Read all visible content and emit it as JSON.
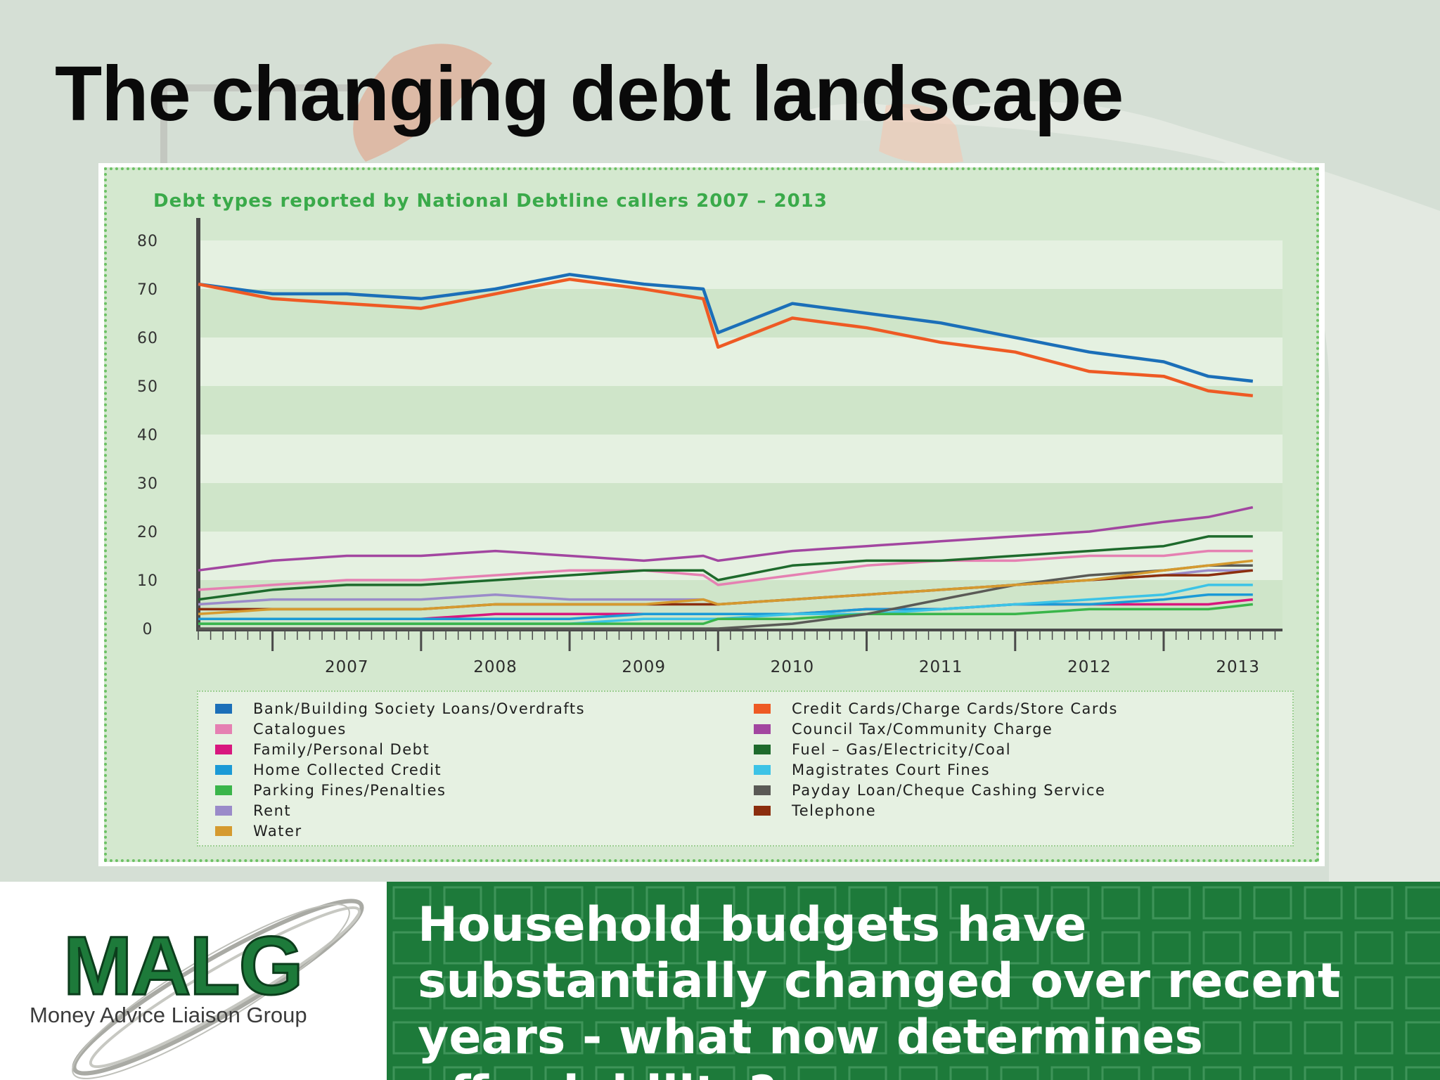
{
  "slide": {
    "title": "The changing debt landscape",
    "footer_text": "Household budgets have substantially changed over recent years - what now determines affordability?",
    "logo_text": "MALG",
    "logo_subtitle": "Money Advice Liaison Group"
  },
  "colors": {
    "accent_green": "#1d7a3a",
    "chart_background": "#d4e8cf",
    "chart_title": "#3aaa4a"
  },
  "chart_data": {
    "type": "line",
    "title": "Debt types reported by National Debtline callers 2007 – 2013",
    "xlabel": "",
    "ylabel": "",
    "ylim": [
      0,
      80
    ],
    "yticks": [
      0,
      10,
      20,
      30,
      40,
      50,
      60,
      70,
      80
    ],
    "xlim": [
      2006.5,
      2013.8
    ],
    "xticks": [
      2007,
      2008,
      2009,
      2010,
      2011,
      2012,
      2013
    ],
    "xtick_labels": [
      "2007",
      "2008",
      "2009",
      "2010",
      "2011",
      "2012",
      "2013"
    ],
    "grid": "alternating horizontal bands",
    "legend_position": "bottom",
    "x": [
      2006.5,
      2007.0,
      2007.5,
      2008.0,
      2008.5,
      2009.0,
      2009.5,
      2009.9,
      2010.0,
      2010.5,
      2011.0,
      2011.5,
      2012.0,
      2012.5,
      2013.0,
      2013.3,
      2013.6
    ],
    "series": [
      {
        "name": "Bank/Building Society Loans/Overdrafts",
        "color": "#1b6fb8",
        "values": [
          71,
          69,
          69,
          68,
          70,
          73,
          71,
          70,
          61,
          67,
          65,
          63,
          60,
          57,
          55,
          52,
          51
        ]
      },
      {
        "name": "Credit Cards/Charge Cards/Store Cards",
        "color": "#ee5a24",
        "values": [
          71,
          68,
          67,
          66,
          69,
          72,
          70,
          68,
          58,
          64,
          62,
          59,
          57,
          53,
          52,
          49,
          48
        ]
      },
      {
        "name": "Catalogues",
        "color": "#e580b2",
        "values": [
          8,
          9,
          10,
          10,
          11,
          12,
          12,
          11,
          9,
          11,
          13,
          14,
          14,
          15,
          15,
          16,
          16
        ]
      },
      {
        "name": "Council Tax/Community Charge",
        "color": "#a246a0",
        "values": [
          12,
          14,
          15,
          15,
          16,
          15,
          14,
          15,
          14,
          16,
          17,
          18,
          19,
          20,
          22,
          23,
          25
        ]
      },
      {
        "name": "Family/Personal Debt",
        "color": "#d8177e",
        "values": [
          2,
          2,
          2,
          2,
          3,
          3,
          3,
          3,
          3,
          3,
          4,
          4,
          5,
          5,
          5,
          5,
          6
        ]
      },
      {
        "name": "Fuel – Gas/Electricity/Coal",
        "color": "#1e6a2c",
        "values": [
          6,
          8,
          9,
          9,
          10,
          11,
          12,
          12,
          10,
          13,
          14,
          14,
          15,
          16,
          17,
          19,
          19
        ]
      },
      {
        "name": "Home Collected Credit",
        "color": "#1b9ad6",
        "values": [
          2,
          2,
          2,
          2,
          2,
          2,
          3,
          3,
          3,
          3,
          4,
          4,
          5,
          5,
          6,
          7,
          7
        ]
      },
      {
        "name": "Magistrates Court Fines",
        "color": "#3cc3e6",
        "values": [
          1,
          1,
          1,
          1,
          1,
          1,
          2,
          2,
          2,
          3,
          3,
          4,
          5,
          6,
          7,
          9,
          9
        ]
      },
      {
        "name": "Parking Fines/Penalties",
        "color": "#3ab54a",
        "values": [
          1,
          1,
          1,
          1,
          1,
          1,
          1,
          1,
          2,
          2,
          3,
          3,
          3,
          4,
          4,
          4,
          5
        ]
      },
      {
        "name": "Payday Loan/Cheque Cashing Service",
        "color": "#5a5a56",
        "values": [
          0,
          0,
          0,
          0,
          0,
          0,
          0,
          0,
          0,
          1,
          3,
          6,
          9,
          11,
          12,
          13,
          13
        ]
      },
      {
        "name": "Rent",
        "color": "#9a8bc9",
        "values": [
          5,
          6,
          6,
          6,
          7,
          6,
          6,
          6,
          5,
          6,
          7,
          8,
          9,
          10,
          11,
          12,
          12
        ]
      },
      {
        "name": "Telephone",
        "color": "#8b2e0e",
        "values": [
          4,
          4,
          4,
          4,
          5,
          5,
          5,
          5,
          5,
          6,
          7,
          8,
          9,
          10,
          11,
          11,
          12
        ]
      },
      {
        "name": "Water",
        "color": "#d59a2f",
        "values": [
          3,
          4,
          4,
          4,
          5,
          5,
          5,
          6,
          5,
          6,
          7,
          8,
          9,
          10,
          12,
          13,
          14
        ]
      }
    ]
  }
}
